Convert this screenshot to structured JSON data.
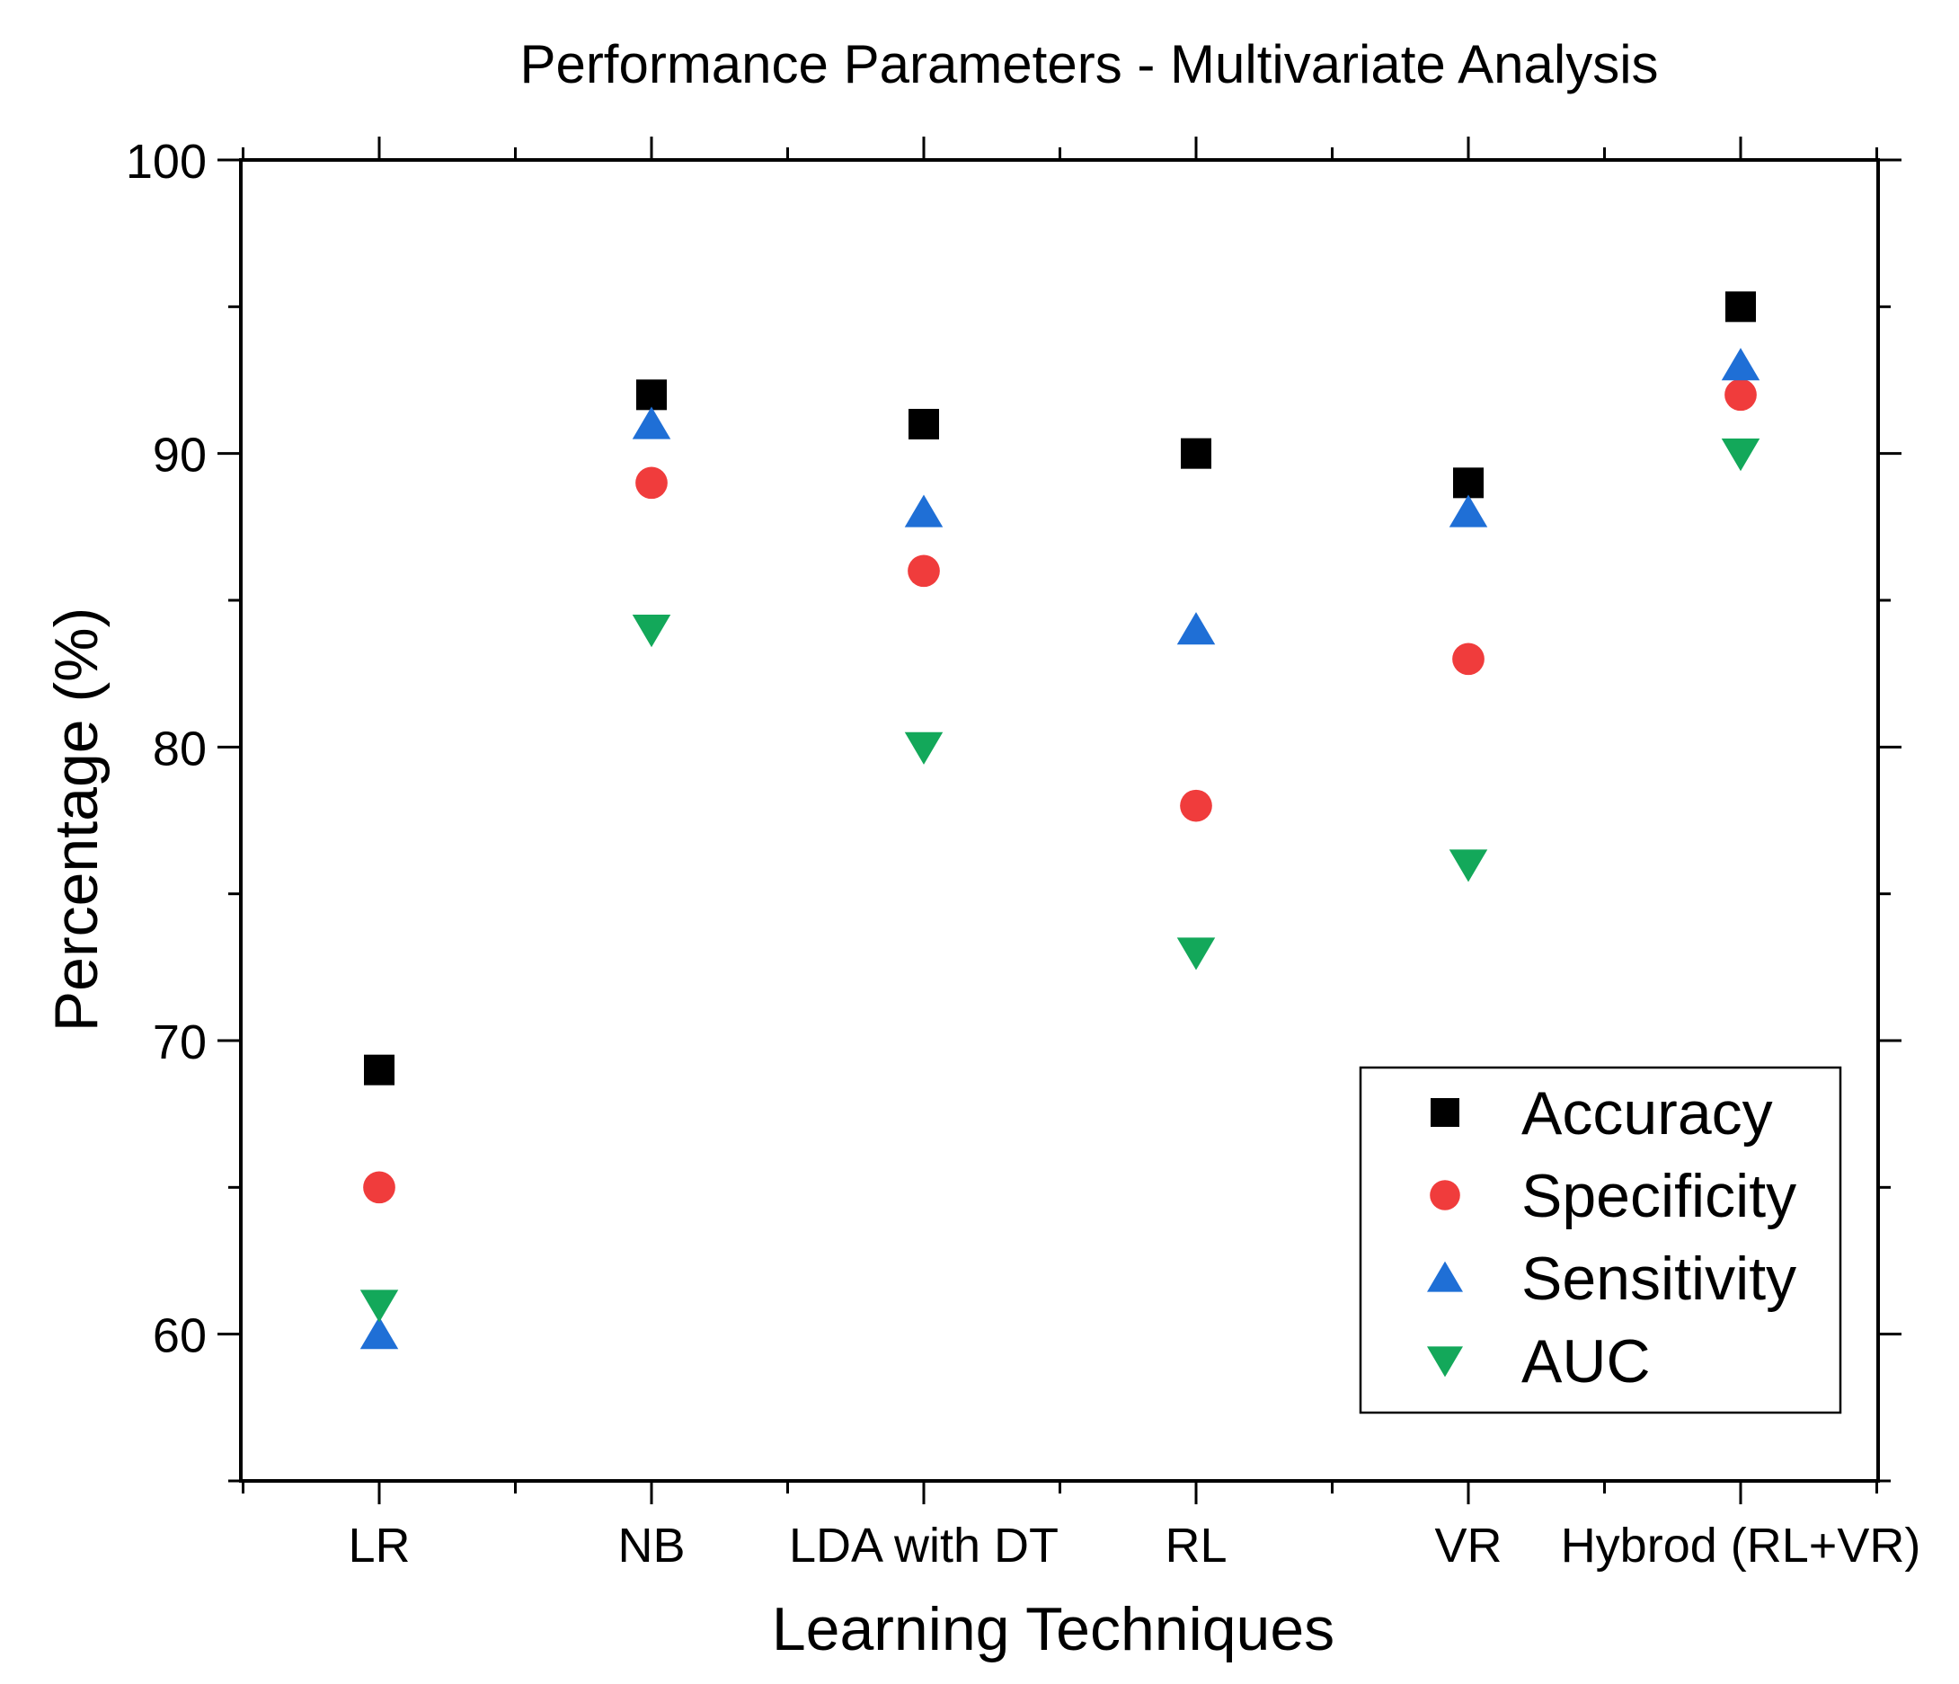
{
  "chart_data": {
    "type": "scatter",
    "title": "Performance Parameters - Multivariate Analysis",
    "xlabel": "Learning Techniques",
    "ylabel": "Percentage (%)",
    "categories": [
      "LR",
      "NB",
      "LDA with DT",
      "RL",
      "VR",
      "Hybrod (RL+VR)"
    ],
    "ylim": [
      55,
      100
    ],
    "yticks": [
      60,
      70,
      80,
      90,
      100
    ],
    "legend_position": "bottom-right",
    "series": [
      {
        "name": "Accuracy",
        "marker": "square",
        "color": "#000000",
        "values": [
          69,
          92,
          91,
          90,
          89,
          95
        ]
      },
      {
        "name": "Specificity",
        "marker": "circle",
        "color": "#f03c3c",
        "values": [
          65,
          89,
          86,
          78,
          83,
          92
        ]
      },
      {
        "name": "Sensitivity",
        "marker": "triangle-up",
        "color": "#1f6fd6",
        "values": [
          60,
          91,
          88,
          84,
          88,
          93
        ]
      },
      {
        "name": "AUC",
        "marker": "triangle-down",
        "color": "#13a85a",
        "values": [
          61,
          84,
          80,
          73,
          76,
          90
        ]
      }
    ]
  }
}
